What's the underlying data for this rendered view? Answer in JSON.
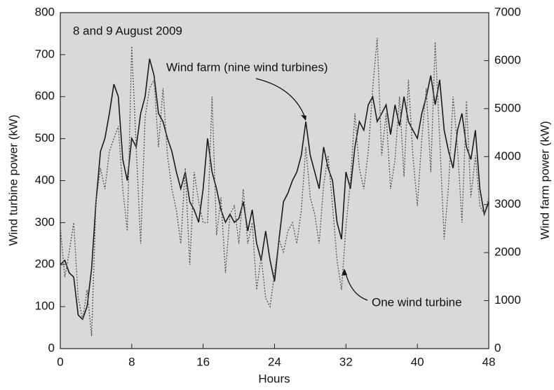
{
  "chart_data": {
    "type": "line",
    "title": "8 and 9 August 2009",
    "x_label": "Hours",
    "y_label": "Wind turbine power (kW)",
    "y2_label": "Wind farm power (kW)",
    "x": [
      0,
      0.5,
      1,
      1.5,
      2,
      2.5,
      3,
      3.5,
      4,
      4.5,
      5,
      5.5,
      6,
      6.5,
      7,
      7.5,
      8,
      8.5,
      9,
      9.5,
      10,
      10.5,
      11,
      11.5,
      12,
      12.5,
      13,
      13.5,
      14,
      14.5,
      15,
      15.5,
      16,
      16.5,
      17,
      17.5,
      18,
      18.5,
      19,
      19.5,
      20,
      20.5,
      21,
      21.5,
      22,
      22.5,
      23,
      23.5,
      24,
      24.5,
      25,
      25.5,
      26,
      26.5,
      27,
      27.5,
      28,
      28.5,
      29,
      29.5,
      30,
      30.5,
      31,
      31.5,
      32,
      32.5,
      33,
      33.5,
      34,
      34.5,
      35,
      35.5,
      36,
      36.5,
      37,
      37.5,
      38,
      38.5,
      39,
      39.5,
      40,
      40.5,
      41,
      41.5,
      42,
      42.5,
      43,
      43.5,
      44,
      44.5,
      45,
      45.5,
      46,
      46.5,
      47,
      47.5,
      48
    ],
    "series": [
      {
        "name": "Wind farm (nine wind turbines)",
        "color": "#1a1a1a",
        "dashed": false,
        "axis": "y2",
        "values": [
          1750,
          1840,
          1580,
          1490,
          700,
          610,
          880,
          1660,
          3060,
          4110,
          4380,
          4900,
          5510,
          5250,
          3940,
          3500,
          4380,
          4200,
          4900,
          5250,
          6040,
          5690,
          4900,
          4730,
          4380,
          4110,
          3680,
          3330,
          3680,
          3060,
          2890,
          2630,
          3330,
          4380,
          3680,
          3330,
          2890,
          2630,
          2800,
          2630,
          2710,
          3060,
          2450,
          2890,
          2190,
          1840,
          2450,
          1840,
          1400,
          2280,
          3060,
          3240,
          3500,
          3680,
          4030,
          4730,
          4030,
          3680,
          3330,
          4200,
          3760,
          3500,
          2630,
          2280,
          3680,
          3330,
          4200,
          4730,
          4550,
          5080,
          5250,
          4730,
          4900,
          5080,
          4460,
          5080,
          4640,
          5250,
          4730,
          4550,
          4380,
          4900,
          5250,
          5690,
          5080,
          5600,
          4550,
          4110,
          3760,
          4550,
          4900,
          4200,
          3940,
          4550,
          3330,
          2800,
          3060
        ]
      },
      {
        "name": "One wind turbine",
        "color": "#555555",
        "dashed": true,
        "values": [
          290,
          170,
          230,
          300,
          120,
          70,
          140,
          30,
          350,
          430,
          380,
          470,
          500,
          530,
          380,
          280,
          720,
          480,
          250,
          550,
          620,
          640,
          480,
          620,
          460,
          380,
          330,
          250,
          430,
          200,
          420,
          350,
          300,
          300,
          600,
          270,
          360,
          180,
          320,
          340,
          250,
          380,
          250,
          300,
          140,
          220,
          120,
          100,
          180,
          260,
          230,
          280,
          300,
          250,
          330,
          480,
          360,
          320,
          250,
          390,
          460,
          340,
          210,
          140,
          290,
          400,
          560,
          430,
          380,
          470,
          620,
          740,
          460,
          560,
          380,
          450,
          600,
          410,
          640,
          460,
          340,
          500,
          620,
          420,
          730,
          500,
          260,
          390,
          600,
          480,
          300,
          590,
          360,
          460,
          340,
          320,
          360
        ]
      }
    ],
    "xlim": [
      0,
      48
    ],
    "xticks": [
      0,
      8,
      16,
      24,
      32,
      40,
      48
    ],
    "ylim": [
      0,
      800
    ],
    "yticks": [
      0,
      100,
      200,
      300,
      400,
      500,
      600,
      700,
      800
    ],
    "y2lim": [
      0,
      7000
    ],
    "y2ticks": [
      0,
      1000,
      2000,
      3000,
      4000,
      5000,
      6000,
      7000
    ],
    "grid": false
  }
}
